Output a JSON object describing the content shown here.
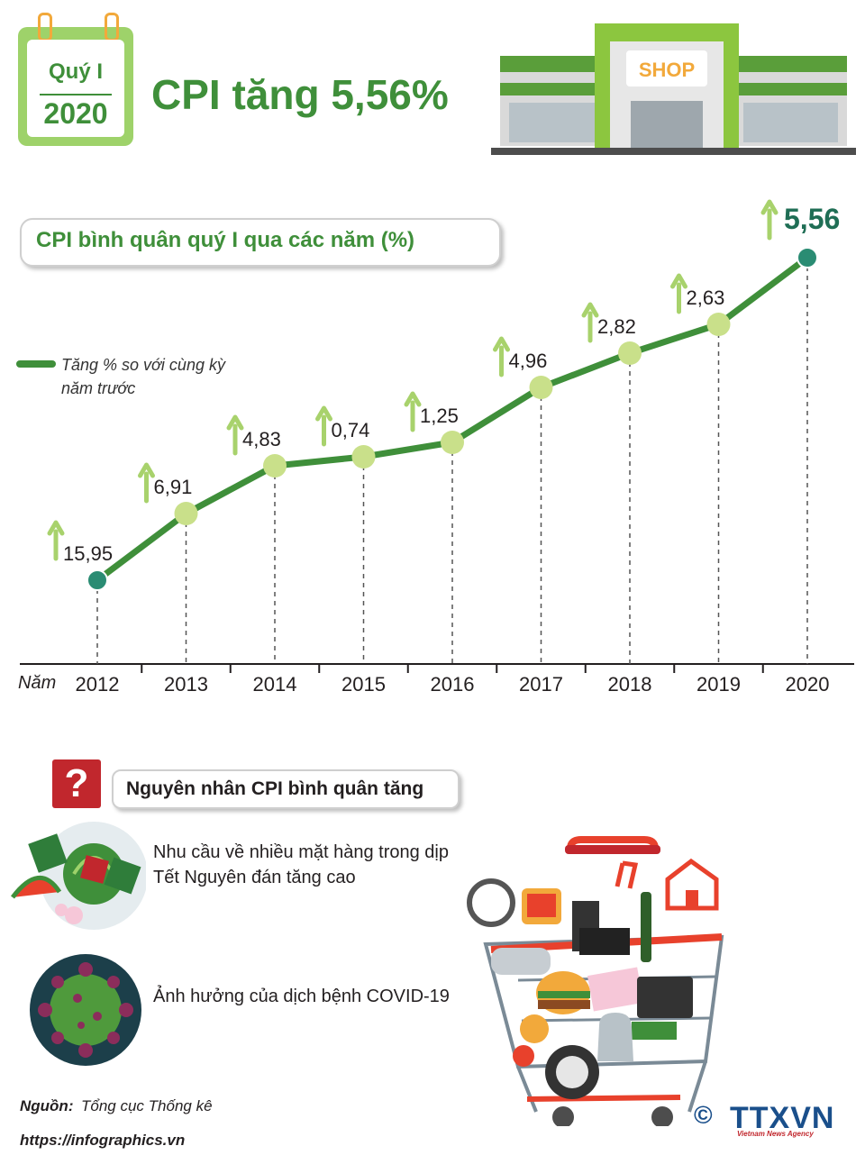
{
  "header": {
    "quarter_label": "Quý I",
    "year_label": "2020",
    "title": "CPI tăng 5,56%",
    "shop_sign": "SHOP"
  },
  "chart_title": "CPI bình quân quý I qua các năm (%)",
  "legend": {
    "text": "Tăng % so với cùng kỳ năm trước"
  },
  "chart_data": {
    "type": "line",
    "title": "CPI bình quân quý I qua các năm (%)",
    "xlabel": "Năm",
    "ylabel": "",
    "categories": [
      "2012",
      "2013",
      "2014",
      "2015",
      "2016",
      "2017",
      "2018",
      "2019",
      "2020"
    ],
    "series": [
      {
        "name": "Tăng % so với cùng kỳ năm trước",
        "values": [
          15.95,
          6.91,
          4.83,
          0.74,
          1.25,
          4.96,
          2.82,
          2.63,
          5.56
        ],
        "labels": [
          "15,95",
          "6,91",
          "4,83",
          "0,74",
          "1,25",
          "4,96",
          "2,82",
          "2,63",
          "5,56"
        ]
      }
    ],
    "axis_order_note": "points drawn along a rising path"
  },
  "causes": {
    "title": "Nguyên nhân CPI bình quân tăng",
    "q_mark": "?",
    "items": [
      {
        "text": "Nhu cầu về nhiều mặt hàng trong dịp Tết Nguyên đán tăng cao"
      },
      {
        "text": "Ảnh hưởng của dịch bệnh COVID-19"
      }
    ]
  },
  "source": {
    "label": "Nguồn:",
    "value": "Tổng cục Thống kê"
  },
  "footer": {
    "url": "https://infographics.vn",
    "copyright": "©",
    "logo": "TTXVN",
    "logo_sub": "Vietnam News Agency"
  },
  "colors": {
    "line": "#3f8f3a",
    "point": "#c9e08a",
    "end_point": "#2a8c73",
    "arrow": "#a8d26c",
    "title": "#3f8f3a"
  }
}
